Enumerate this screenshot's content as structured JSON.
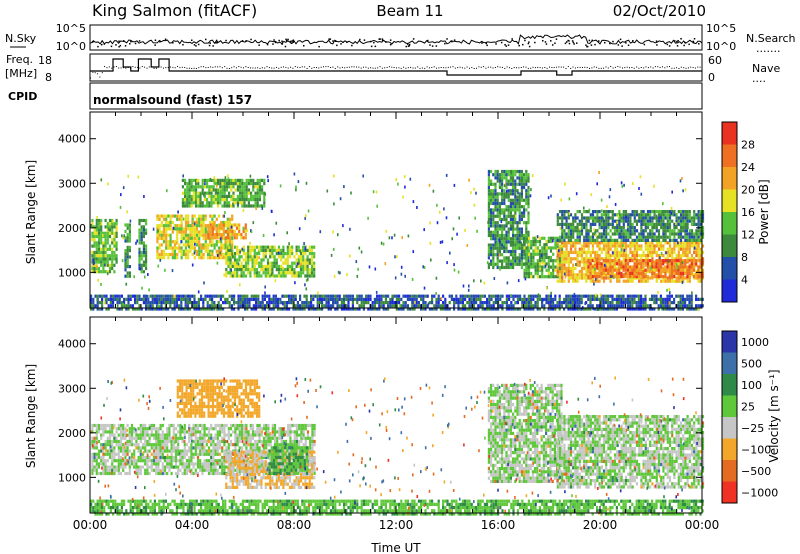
{
  "header": {
    "site": "King Salmon (fitACF)",
    "beam": "Beam 11",
    "date": "02/Oct/2010"
  },
  "sky_panel": {
    "left_label": "N.Sky",
    "right_label": "N.Search",
    "right_dots": ".......",
    "ticks": [
      "10^5",
      "10^0"
    ]
  },
  "freq_panel": {
    "left_label_1": "Freq.",
    "left_label_2": "[MHz]",
    "left_ticks": [
      "18",
      "8"
    ],
    "right_label": "Nave",
    "right_dots": "....",
    "right_ticks": [
      "60",
      "0"
    ]
  },
  "cpid": {
    "label": "CPID",
    "program": "normalsound (fast) 157"
  },
  "colors": {
    "power": [
      "#1f2bd9",
      "#244fa9",
      "#3d8a3c",
      "#55c03a",
      "#e7e126",
      "#f2a325",
      "#ef7023",
      "#e9321f"
    ],
    "velocity": [
      "#2a35a8",
      "#3d6fa8",
      "#2f8a48",
      "#5ec83a",
      "#c6c6c6",
      "#f3a72a",
      "#e36c22",
      "#f03224"
    ]
  },
  "chart_data": [
    {
      "type": "heatmap",
      "name": "power",
      "title": "",
      "xlabel": "",
      "ylabel": "Slant Range [km]",
      "xlim": [
        "00:00",
        "24:00"
      ],
      "ylim": [
        200,
        4600
      ],
      "yticks": [
        "1000",
        "2000",
        "3000",
        "4000"
      ],
      "colorbar": {
        "label": "Power [dB]",
        "ticks": [
          "28",
          "24",
          "20",
          "16",
          "12",
          "8",
          "4"
        ],
        "range": [
          0,
          30
        ]
      },
      "regions": [
        {
          "t0": 0.05,
          "t1": 1.05,
          "r0": 1050,
          "r1": 2200,
          "level": 13
        },
        {
          "t0": 1.35,
          "t1": 1.6,
          "r0": 950,
          "r1": 2100,
          "level": 10
        },
        {
          "t0": 1.9,
          "t1": 2.2,
          "r0": 1000,
          "r1": 2200,
          "level": 10
        },
        {
          "t0": 2.6,
          "t1": 5.6,
          "r0": 1350,
          "r1": 2300,
          "level": 17
        },
        {
          "t0": 4.6,
          "t1": 6.1,
          "r0": 1800,
          "r1": 2100,
          "level": 21
        },
        {
          "t0": 5.3,
          "t1": 8.8,
          "r0": 900,
          "r1": 1600,
          "level": 14
        },
        {
          "t0": 3.6,
          "t1": 6.8,
          "r0": 2500,
          "r1": 3100,
          "level": 12
        },
        {
          "t0": 15.6,
          "t1": 17.2,
          "r0": 1100,
          "r1": 3300,
          "level": 10
        },
        {
          "t0": 17.0,
          "t1": 18.5,
          "r0": 900,
          "r1": 1800,
          "level": 12
        },
        {
          "t0": 18.3,
          "t1": 24.0,
          "r0": 800,
          "r1": 1700,
          "level": 19
        },
        {
          "t0": 19.5,
          "t1": 24.0,
          "r0": 900,
          "r1": 1300,
          "level": 24
        },
        {
          "t0": 18.3,
          "t1": 24.0,
          "r0": 1700,
          "r1": 2400,
          "level": 9
        },
        {
          "t0": 0.0,
          "t1": 24.0,
          "r0": 200,
          "r1": 500,
          "level": 6
        }
      ]
    },
    {
      "type": "heatmap",
      "name": "velocity",
      "title": "",
      "xlabel": "Time UT",
      "ylabel": "Slant Range [km]",
      "xlim": [
        "00:00",
        "24:00"
      ],
      "ylim": [
        200,
        4600
      ],
      "xticks": [
        "00:00",
        "04:00",
        "08:00",
        "12:00",
        "16:00",
        "20:00",
        "00:00"
      ],
      "yticks": [
        "1000",
        "2000",
        "3000",
        "4000"
      ],
      "colorbar": {
        "label": "Velocity [m s⁻¹]",
        "ticks": [
          "1000",
          "500",
          "100",
          "25",
          "−25",
          "−100",
          "−500",
          "−1000"
        ],
        "range": [
          -1200,
          1200
        ]
      },
      "regions": [
        {
          "t0": 0.05,
          "t1": 8.8,
          "r0": 1100,
          "r1": 2200,
          "level": 0
        },
        {
          "t0": 5.3,
          "t1": 8.8,
          "r0": 800,
          "r1": 1600,
          "level": -60
        },
        {
          "t0": 3.4,
          "t1": 6.6,
          "r0": 2400,
          "r1": 3200,
          "level": -150
        },
        {
          "t0": 7.0,
          "t1": 8.5,
          "r0": 1100,
          "r1": 1700,
          "level": 60
        },
        {
          "t0": 15.6,
          "t1": 18.5,
          "r0": 900,
          "r1": 3100,
          "level": 0
        },
        {
          "t0": 18.3,
          "t1": 24.0,
          "r0": 800,
          "r1": 2400,
          "level": 0
        },
        {
          "t0": 0.0,
          "t1": 24.0,
          "r0": 200,
          "r1": 500,
          "level": 40
        }
      ]
    }
  ]
}
